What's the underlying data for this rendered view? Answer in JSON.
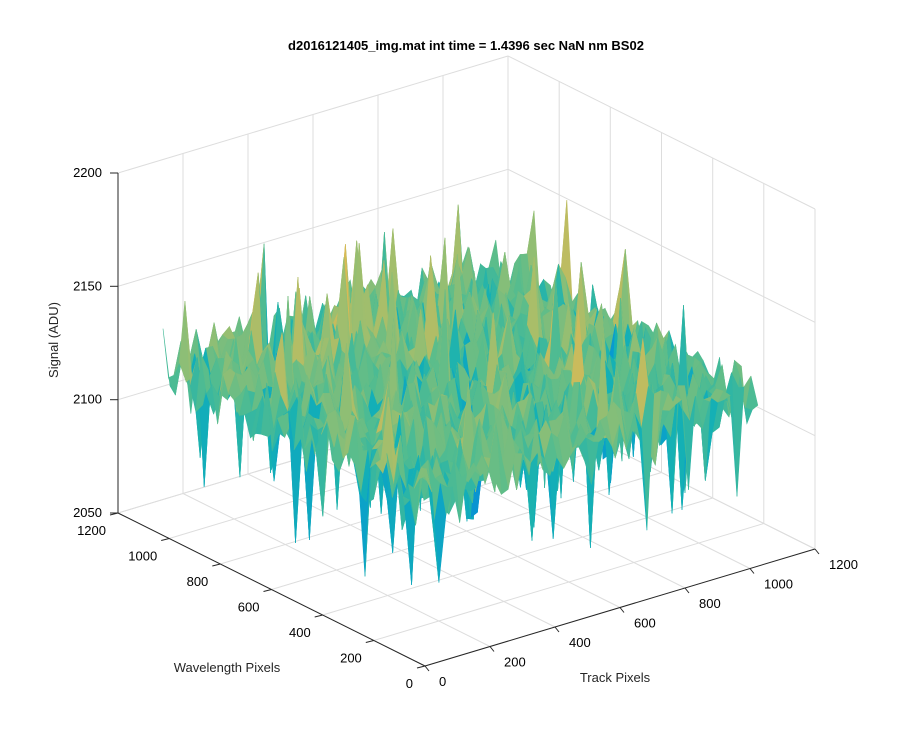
{
  "chart_data": {
    "type": "surface",
    "title": "d2016121405_img.mat int time = 1.4396 sec  NaN nm BS02",
    "xlabel": "Track Pixels",
    "ylabel": "Wavelength Pixels",
    "zlabel": "Signal (ADU)",
    "xlim": [
      0,
      1200
    ],
    "ylim": [
      0,
      1200
    ],
    "zlim": [
      2050,
      2200
    ],
    "xticks": [
      "0",
      "200",
      "400",
      "600",
      "800",
      "1000",
      "1200"
    ],
    "yticks": [
      "0",
      "200",
      "400",
      "600",
      "800",
      "1000",
      "1200"
    ],
    "zticks": [
      "2050",
      "2100",
      "2150",
      "2200"
    ],
    "surface": {
      "x_extent": [
        0,
        1024
      ],
      "y_extent": [
        0,
        1024
      ],
      "mean_signal": 2125,
      "typical_range": [
        2100,
        2150
      ],
      "max_spike": 2170,
      "min_spike": 2070,
      "colormap": "parula"
    },
    "grid": true,
    "view": "3d"
  }
}
